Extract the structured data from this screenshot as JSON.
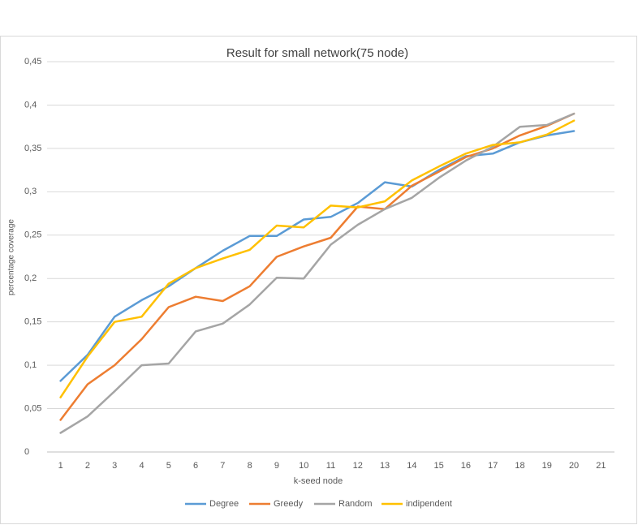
{
  "chart_data": {
    "type": "line",
    "title": "Result for small network(75 node)",
    "x_label": "k-seed node",
    "y_label": "percentage coverage",
    "categories": [
      "1",
      "2",
      "3",
      "4",
      "5",
      "6",
      "7",
      "8",
      "9",
      "10",
      "11",
      "12",
      "13",
      "14",
      "15",
      "16",
      "17",
      "18",
      "19",
      "20",
      "21"
    ],
    "series": [
      {
        "name": "Degree",
        "color": "#5b9bd5",
        "values": [
          0.082,
          0.112,
          0.156,
          0.175,
          0.191,
          0.212,
          0.232,
          0.249,
          0.249,
          0.268,
          0.271,
          0.287,
          0.311,
          0.306,
          0.325,
          0.341,
          0.344,
          0.357,
          0.365,
          0.37,
          null
        ]
      },
      {
        "name": "Greedy",
        "color": "#ed7d31",
        "values": [
          0.037,
          0.078,
          0.1,
          0.13,
          0.167,
          0.179,
          0.174,
          0.191,
          0.225,
          0.237,
          0.247,
          0.283,
          0.28,
          0.307,
          0.323,
          0.34,
          0.35,
          0.365,
          0.376,
          0.39,
          null
        ]
      },
      {
        "name": "Random",
        "color": "#a5a5a5",
        "values": [
          0.022,
          0.041,
          0.07,
          0.1,
          0.102,
          0.139,
          0.148,
          0.17,
          0.201,
          0.2,
          0.239,
          0.262,
          0.28,
          0.293,
          0.316,
          0.336,
          0.352,
          0.375,
          0.377,
          0.39,
          null
        ]
      },
      {
        "name": "indipendent",
        "color": "#ffc000",
        "values": [
          0.063,
          0.11,
          0.15,
          0.156,
          0.194,
          0.212,
          0.223,
          0.233,
          0.261,
          0.259,
          0.284,
          0.282,
          0.289,
          0.313,
          0.329,
          0.344,
          0.354,
          0.357,
          0.366,
          0.382,
          null
        ]
      }
    ],
    "ylim": [
      0,
      0.45
    ],
    "yticks": [
      0,
      {
        "value": 0.05,
        "label": "0,05"
      },
      {
        "value": 0.1,
        "label": "0,1"
      },
      {
        "value": 0.15,
        "label": "0,15"
      },
      {
        "value": 0.2,
        "label": "0,2"
      },
      {
        "value": 0.25,
        "label": "0,25"
      },
      {
        "value": 0.3,
        "label": "0,3"
      },
      {
        "value": 0.35,
        "label": "0,35"
      },
      {
        "value": 0.4,
        "label": "0,4"
      },
      {
        "value": 0.45,
        "label": "0,45"
      }
    ],
    "grid": true,
    "legend": "bottom"
  }
}
